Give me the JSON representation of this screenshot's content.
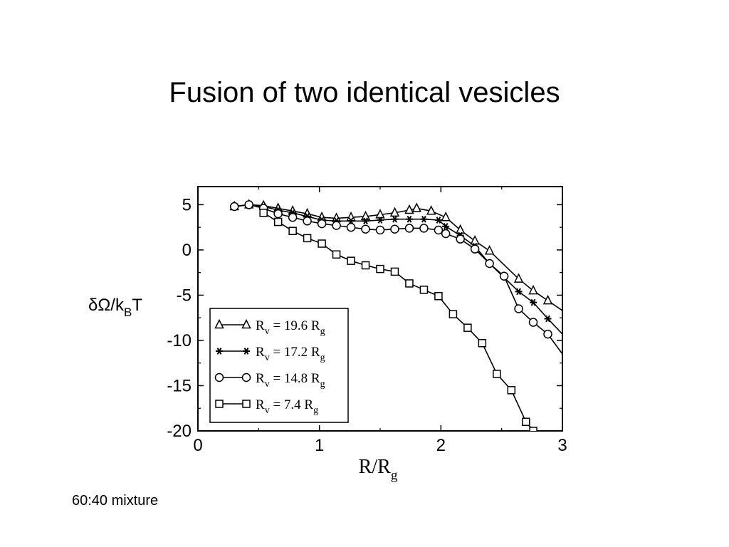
{
  "slide": {
    "title": "Fusion of two identical vesicles",
    "caption": "60:40 mixture"
  },
  "chart_data": {
    "type": "line",
    "xlabel": "R/R",
    "xlabel_sub": "g",
    "ylabel_main": "δΩ/k",
    "ylabel_sub": "B",
    "ylabel_tail": "T",
    "xlim": [
      0,
      3
    ],
    "ylim": [
      -20,
      7
    ],
    "x_ticks": [
      0,
      1,
      2,
      3
    ],
    "y_ticks": [
      5,
      0,
      -5,
      -10,
      -15,
      -20
    ],
    "grid": false,
    "legend_position": "bottom-left",
    "series": [
      {
        "name_prefix": "R",
        "name_sub1": "v",
        "name_mid": " = 19.6 R",
        "name_sub2": "g",
        "marker": "triangle",
        "points": [
          [
            0.3,
            4.8
          ],
          [
            0.42,
            5.0
          ],
          [
            0.54,
            4.9
          ],
          [
            0.66,
            4.6
          ],
          [
            0.78,
            4.3
          ],
          [
            0.9,
            4.0
          ],
          [
            1.02,
            3.6
          ],
          [
            1.14,
            3.5
          ],
          [
            1.26,
            3.6
          ],
          [
            1.38,
            3.7
          ],
          [
            1.5,
            3.9
          ],
          [
            1.62,
            4.1
          ],
          [
            1.74,
            4.4
          ],
          [
            1.8,
            4.6
          ],
          [
            1.92,
            4.3
          ],
          [
            2.04,
            3.6
          ],
          [
            2.16,
            2.2
          ],
          [
            2.28,
            1.0
          ],
          [
            2.4,
            -0.1
          ],
          [
            2.64,
            -3.2
          ],
          [
            2.76,
            -4.5
          ],
          [
            2.88,
            -5.6
          ],
          [
            3.0,
            -6.7
          ]
        ]
      },
      {
        "name_prefix": "R",
        "name_sub1": "v",
        "name_mid": " = 17.2 R",
        "name_sub2": "g",
        "marker": "star",
        "points": [
          [
            0.3,
            4.8
          ],
          [
            0.42,
            5.0
          ],
          [
            0.54,
            4.8
          ],
          [
            0.66,
            4.4
          ],
          [
            0.78,
            4.1
          ],
          [
            0.9,
            3.7
          ],
          [
            1.02,
            3.3
          ],
          [
            1.14,
            3.2
          ],
          [
            1.26,
            3.2
          ],
          [
            1.38,
            3.2
          ],
          [
            1.5,
            3.3
          ],
          [
            1.62,
            3.4
          ],
          [
            1.74,
            3.4
          ],
          [
            1.86,
            3.4
          ],
          [
            1.98,
            3.3
          ],
          [
            2.04,
            2.6
          ],
          [
            2.16,
            1.6
          ],
          [
            2.28,
            0.4
          ],
          [
            2.4,
            -1.5
          ],
          [
            2.64,
            -4.6
          ],
          [
            2.76,
            -5.8
          ],
          [
            2.88,
            -7.6
          ],
          [
            3.0,
            -9.3
          ]
        ]
      },
      {
        "name_prefix": "R",
        "name_sub1": "v",
        "name_mid": " = 14.8 R",
        "name_sub2": "g",
        "marker": "circle",
        "points": [
          [
            0.3,
            4.8
          ],
          [
            0.42,
            5.0
          ],
          [
            0.54,
            4.6
          ],
          [
            0.66,
            4.0
          ],
          [
            0.78,
            3.6
          ],
          [
            0.9,
            3.2
          ],
          [
            1.02,
            2.9
          ],
          [
            1.14,
            2.7
          ],
          [
            1.26,
            2.5
          ],
          [
            1.38,
            2.3
          ],
          [
            1.5,
            2.2
          ],
          [
            1.62,
            2.3
          ],
          [
            1.74,
            2.4
          ],
          [
            1.86,
            2.4
          ],
          [
            1.98,
            2.2
          ],
          [
            2.04,
            1.8
          ],
          [
            2.16,
            1.2
          ],
          [
            2.28,
            0.1
          ],
          [
            2.4,
            -1.5
          ],
          [
            2.52,
            -2.9
          ],
          [
            2.64,
            -6.5
          ],
          [
            2.76,
            -8.0
          ],
          [
            2.88,
            -9.3
          ],
          [
            3.0,
            -11.5
          ]
        ]
      },
      {
        "name_prefix": "R",
        "name_sub1": "v",
        "name_mid": " = 7.4 R",
        "name_sub2": "g",
        "marker": "square",
        "points": [
          [
            0.54,
            4.1
          ],
          [
            0.66,
            3.1
          ],
          [
            0.78,
            2.1
          ],
          [
            0.9,
            1.3
          ],
          [
            1.02,
            0.7
          ],
          [
            1.14,
            -0.5
          ],
          [
            1.26,
            -1.2
          ],
          [
            1.38,
            -1.7
          ],
          [
            1.5,
            -2.1
          ],
          [
            1.62,
            -2.4
          ],
          [
            1.74,
            -3.7
          ],
          [
            1.86,
            -4.4
          ],
          [
            1.98,
            -5.1
          ],
          [
            2.1,
            -7.1
          ],
          [
            2.22,
            -8.6
          ],
          [
            2.34,
            -10.3
          ],
          [
            2.46,
            -13.7
          ],
          [
            2.58,
            -15.5
          ],
          [
            2.7,
            -19.0
          ],
          [
            2.76,
            -20.0
          ]
        ]
      }
    ]
  }
}
